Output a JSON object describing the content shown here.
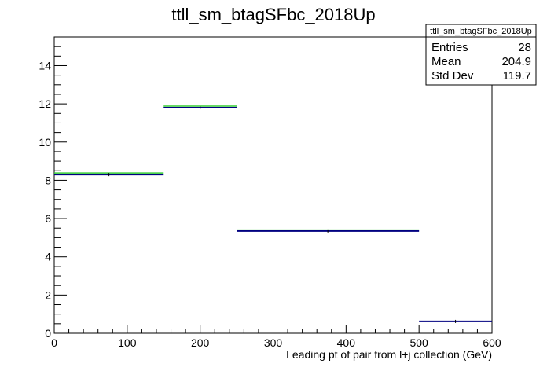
{
  "chart_data": {
    "type": "bar",
    "title": "ttll_sm_btagSFbc_2018Up",
    "xlabel": "Leading pt of pair from l+j collection (GeV)",
    "ylabel": "",
    "xlim": [
      0,
      600
    ],
    "ylim": [
      0,
      15.5
    ],
    "x_ticks": [
      0,
      100,
      200,
      300,
      400,
      500,
      600
    ],
    "y_ticks": [
      0,
      2,
      4,
      6,
      8,
      10,
      12,
      14
    ],
    "bins": [
      {
        "low": 0,
        "high": 150,
        "value": 8.3
      },
      {
        "low": 150,
        "high": 250,
        "value": 11.8
      },
      {
        "low": 250,
        "high": 500,
        "value": 5.35
      },
      {
        "low": 500,
        "high": 600,
        "value": 0.62
      }
    ],
    "overlay_bins": [
      {
        "low": 0,
        "high": 150,
        "value": 8.38
      },
      {
        "low": 150,
        "high": 250,
        "value": 11.88
      },
      {
        "low": 250,
        "high": 500,
        "value": 5.4
      }
    ],
    "colors": {
      "main": "#000080",
      "overlay": "#33cc33"
    },
    "stats": {
      "name": "ttll_sm_btagSFbc_2018Up",
      "rows": [
        {
          "label": "Entries",
          "value": "28"
        },
        {
          "label": "Mean",
          "value": "204.9"
        },
        {
          "label": "Std Dev",
          "value": "119.7"
        }
      ]
    }
  }
}
